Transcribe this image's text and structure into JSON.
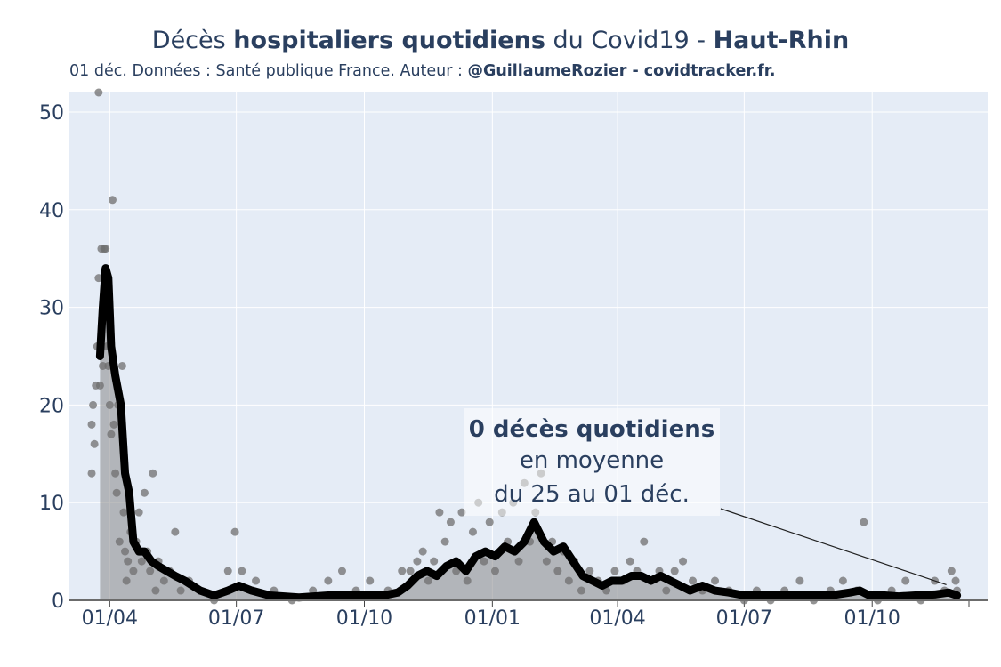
{
  "header": {
    "title_part1": "Décès ",
    "title_part2": "hospitaliers quotidiens",
    "title_part3": " du Covid19 - ",
    "title_part4": "Haut-Rhin",
    "subtitle_part1": "01 déc. Données : Santé publique France. Auteur : ",
    "subtitle_part2": "@GuillaumeRozier - covidtracker.fr."
  },
  "annotation": {
    "line1": "0 décès quotidiens",
    "line2": "en moyenne",
    "line3": "du 25 au 01 déc."
  },
  "colors": {
    "plot_bg": "#e5ecf6",
    "grid": "#ffffff",
    "avg_line": "#000000",
    "avg_fill": "#888888",
    "points": "#6f6f6f",
    "axis_text": "#2a3f5f"
  },
  "chart_data": {
    "type": "line",
    "x_range": [
      "2020-03-03",
      "2021-12-23"
    ],
    "ylim": [
      0,
      52
    ],
    "y_ticks": [
      0,
      10,
      20,
      30,
      40,
      50
    ],
    "x_ticks": [
      {
        "date": "2020-04-01",
        "label": "01/04"
      },
      {
        "date": "2020-07-01",
        "label": "01/07"
      },
      {
        "date": "2020-10-01",
        "label": "01/10"
      },
      {
        "date": "2021-01-01",
        "label": "01/01"
      },
      {
        "date": "2021-04-01",
        "label": "01/04"
      },
      {
        "date": "2021-07-01",
        "label": "01/07"
      },
      {
        "date": "2021-10-01",
        "label": "01/10"
      }
    ],
    "grid": true,
    "series": [
      {
        "kind": "line+area",
        "points": [
          [
            "2020-03-25",
            25
          ],
          [
            "2020-03-27",
            30
          ],
          [
            "2020-03-29",
            34
          ],
          [
            "2020-03-31",
            33
          ],
          [
            "2020-04-02",
            26
          ],
          [
            "2020-04-05",
            23
          ],
          [
            "2020-04-09",
            20
          ],
          [
            "2020-04-12",
            13
          ],
          [
            "2020-04-15",
            11
          ],
          [
            "2020-04-18",
            6
          ],
          [
            "2020-04-22",
            5
          ],
          [
            "2020-04-26",
            5
          ],
          [
            "2020-05-01",
            4
          ],
          [
            "2020-05-06",
            3.5
          ],
          [
            "2020-05-12",
            3
          ],
          [
            "2020-05-18",
            2.5
          ],
          [
            "2020-05-25",
            2
          ],
          [
            "2020-06-05",
            1
          ],
          [
            "2020-06-15",
            0.5
          ],
          [
            "2020-06-25",
            1
          ],
          [
            "2020-07-03",
            1.5
          ],
          [
            "2020-07-12",
            1
          ],
          [
            "2020-07-25",
            0.5
          ],
          [
            "2020-08-15",
            0.3
          ],
          [
            "2020-09-05",
            0.5
          ],
          [
            "2020-09-25",
            0.5
          ],
          [
            "2020-10-15",
            0.5
          ],
          [
            "2020-10-25",
            0.8
          ],
          [
            "2020-11-01",
            1.5
          ],
          [
            "2020-11-08",
            2.5
          ],
          [
            "2020-11-15",
            3
          ],
          [
            "2020-11-22",
            2.5
          ],
          [
            "2020-11-29",
            3.5
          ],
          [
            "2020-12-06",
            4
          ],
          [
            "2020-12-13",
            3
          ],
          [
            "2020-12-20",
            4.5
          ],
          [
            "2020-12-27",
            5
          ],
          [
            "2021-01-03",
            4.5
          ],
          [
            "2021-01-10",
            5.5
          ],
          [
            "2021-01-17",
            5
          ],
          [
            "2021-01-24",
            6
          ],
          [
            "2021-01-31",
            8
          ],
          [
            "2021-02-07",
            6
          ],
          [
            "2021-02-14",
            5
          ],
          [
            "2021-02-21",
            5.5
          ],
          [
            "2021-02-28",
            4
          ],
          [
            "2021-03-07",
            2.5
          ],
          [
            "2021-03-14",
            2
          ],
          [
            "2021-03-21",
            1.5
          ],
          [
            "2021-03-28",
            2
          ],
          [
            "2021-04-04",
            2
          ],
          [
            "2021-04-11",
            2.5
          ],
          [
            "2021-04-18",
            2.5
          ],
          [
            "2021-04-25",
            2
          ],
          [
            "2021-05-02",
            2.5
          ],
          [
            "2021-05-09",
            2
          ],
          [
            "2021-05-16",
            1.5
          ],
          [
            "2021-05-23",
            1
          ],
          [
            "2021-06-01",
            1.5
          ],
          [
            "2021-06-10",
            1
          ],
          [
            "2021-06-20",
            0.8
          ],
          [
            "2021-07-01",
            0.5
          ],
          [
            "2021-07-15",
            0.5
          ],
          [
            "2021-08-01",
            0.5
          ],
          [
            "2021-08-15",
            0.5
          ],
          [
            "2021-09-01",
            0.5
          ],
          [
            "2021-09-15",
            0.8
          ],
          [
            "2021-09-22",
            1
          ],
          [
            "2021-09-29",
            0.5
          ],
          [
            "2021-10-10",
            0.5
          ],
          [
            "2021-10-20",
            0.4
          ],
          [
            "2021-11-01",
            0.5
          ],
          [
            "2021-11-15",
            0.6
          ],
          [
            "2021-11-25",
            0.8
          ],
          [
            "2021-12-01",
            0.5
          ]
        ]
      },
      {
        "kind": "points",
        "points": [
          [
            "2020-03-19",
            13
          ],
          [
            "2020-03-19",
            18
          ],
          [
            "2020-03-20",
            20
          ],
          [
            "2020-03-21",
            16
          ],
          [
            "2020-03-22",
            22
          ],
          [
            "2020-03-23",
            26
          ],
          [
            "2020-03-24",
            33
          ],
          [
            "2020-03-24",
            52
          ],
          [
            "2020-03-25",
            22
          ],
          [
            "2020-03-26",
            36
          ],
          [
            "2020-03-27",
            24
          ],
          [
            "2020-03-28",
            36
          ],
          [
            "2020-03-29",
            36
          ],
          [
            "2020-03-30",
            26
          ],
          [
            "2020-03-31",
            24
          ],
          [
            "2020-04-01",
            20
          ],
          [
            "2020-04-02",
            17
          ],
          [
            "2020-04-03",
            41
          ],
          [
            "2020-04-04",
            18
          ],
          [
            "2020-04-05",
            13
          ],
          [
            "2020-04-06",
            11
          ],
          [
            "2020-04-07",
            20
          ],
          [
            "2020-04-08",
            6
          ],
          [
            "2020-04-10",
            24
          ],
          [
            "2020-04-11",
            9
          ],
          [
            "2020-04-12",
            5
          ],
          [
            "2020-04-13",
            2
          ],
          [
            "2020-04-14",
            4
          ],
          [
            "2020-04-16",
            7
          ],
          [
            "2020-04-18",
            3
          ],
          [
            "2020-04-20",
            6
          ],
          [
            "2020-04-22",
            9
          ],
          [
            "2020-04-24",
            4
          ],
          [
            "2020-04-26",
            11
          ],
          [
            "2020-04-28",
            5
          ],
          [
            "2020-04-30",
            3
          ],
          [
            "2020-05-02",
            13
          ],
          [
            "2020-05-04",
            1
          ],
          [
            "2020-05-06",
            4
          ],
          [
            "2020-05-10",
            2
          ],
          [
            "2020-05-14",
            3
          ],
          [
            "2020-05-18",
            7
          ],
          [
            "2020-05-22",
            1
          ],
          [
            "2020-05-28",
            2
          ],
          [
            "2020-06-05",
            1
          ],
          [
            "2020-06-15",
            0
          ],
          [
            "2020-06-25",
            3
          ],
          [
            "2020-06-30",
            7
          ],
          [
            "2020-07-05",
            3
          ],
          [
            "2020-07-15",
            2
          ],
          [
            "2020-07-28",
            1
          ],
          [
            "2020-08-10",
            0
          ],
          [
            "2020-08-25",
            1
          ],
          [
            "2020-09-05",
            2
          ],
          [
            "2020-09-15",
            3
          ],
          [
            "2020-09-25",
            1
          ],
          [
            "2020-10-05",
            2
          ],
          [
            "2020-10-18",
            1
          ],
          [
            "2020-10-28",
            3
          ],
          [
            "2020-11-03",
            3
          ],
          [
            "2020-11-08",
            4
          ],
          [
            "2020-11-12",
            5
          ],
          [
            "2020-11-16",
            2
          ],
          [
            "2020-11-20",
            4
          ],
          [
            "2020-11-24",
            9
          ],
          [
            "2020-11-28",
            6
          ],
          [
            "2020-12-02",
            8
          ],
          [
            "2020-12-06",
            3
          ],
          [
            "2020-12-10",
            9
          ],
          [
            "2020-12-14",
            2
          ],
          [
            "2020-12-18",
            7
          ],
          [
            "2020-12-22",
            10
          ],
          [
            "2020-12-26",
            4
          ],
          [
            "2020-12-30",
            8
          ],
          [
            "2021-01-03",
            3
          ],
          [
            "2021-01-08",
            9
          ],
          [
            "2021-01-12",
            6
          ],
          [
            "2021-01-16",
            10
          ],
          [
            "2021-01-20",
            4
          ],
          [
            "2021-01-24",
            12
          ],
          [
            "2021-01-28",
            6
          ],
          [
            "2021-02-01",
            9
          ],
          [
            "2021-02-05",
            13
          ],
          [
            "2021-02-09",
            4
          ],
          [
            "2021-02-13",
            6
          ],
          [
            "2021-02-17",
            3
          ],
          [
            "2021-02-21",
            5
          ],
          [
            "2021-02-25",
            2
          ],
          [
            "2021-03-01",
            4
          ],
          [
            "2021-03-06",
            1
          ],
          [
            "2021-03-12",
            3
          ],
          [
            "2021-03-18",
            2
          ],
          [
            "2021-03-24",
            1
          ],
          [
            "2021-03-30",
            3
          ],
          [
            "2021-04-05",
            2
          ],
          [
            "2021-04-10",
            4
          ],
          [
            "2021-04-15",
            3
          ],
          [
            "2021-04-20",
            6
          ],
          [
            "2021-04-25",
            2
          ],
          [
            "2021-05-01",
            3
          ],
          [
            "2021-05-06",
            1
          ],
          [
            "2021-05-12",
            3
          ],
          [
            "2021-05-18",
            4
          ],
          [
            "2021-05-25",
            2
          ],
          [
            "2021-06-01",
            1
          ],
          [
            "2021-06-10",
            2
          ],
          [
            "2021-06-20",
            1
          ],
          [
            "2021-07-01",
            0
          ],
          [
            "2021-07-10",
            1
          ],
          [
            "2021-07-20",
            0
          ],
          [
            "2021-07-30",
            1
          ],
          [
            "2021-08-10",
            2
          ],
          [
            "2021-08-20",
            0
          ],
          [
            "2021-09-01",
            1
          ],
          [
            "2021-09-10",
            2
          ],
          [
            "2021-09-20",
            1
          ],
          [
            "2021-09-25",
            8
          ],
          [
            "2021-10-05",
            0
          ],
          [
            "2021-10-15",
            1
          ],
          [
            "2021-10-25",
            2
          ],
          [
            "2021-11-05",
            0
          ],
          [
            "2021-11-15",
            2
          ],
          [
            "2021-11-22",
            1
          ],
          [
            "2021-11-27",
            3
          ],
          [
            "2021-11-30",
            2
          ],
          [
            "2021-12-01",
            1
          ]
        ]
      }
    ]
  }
}
